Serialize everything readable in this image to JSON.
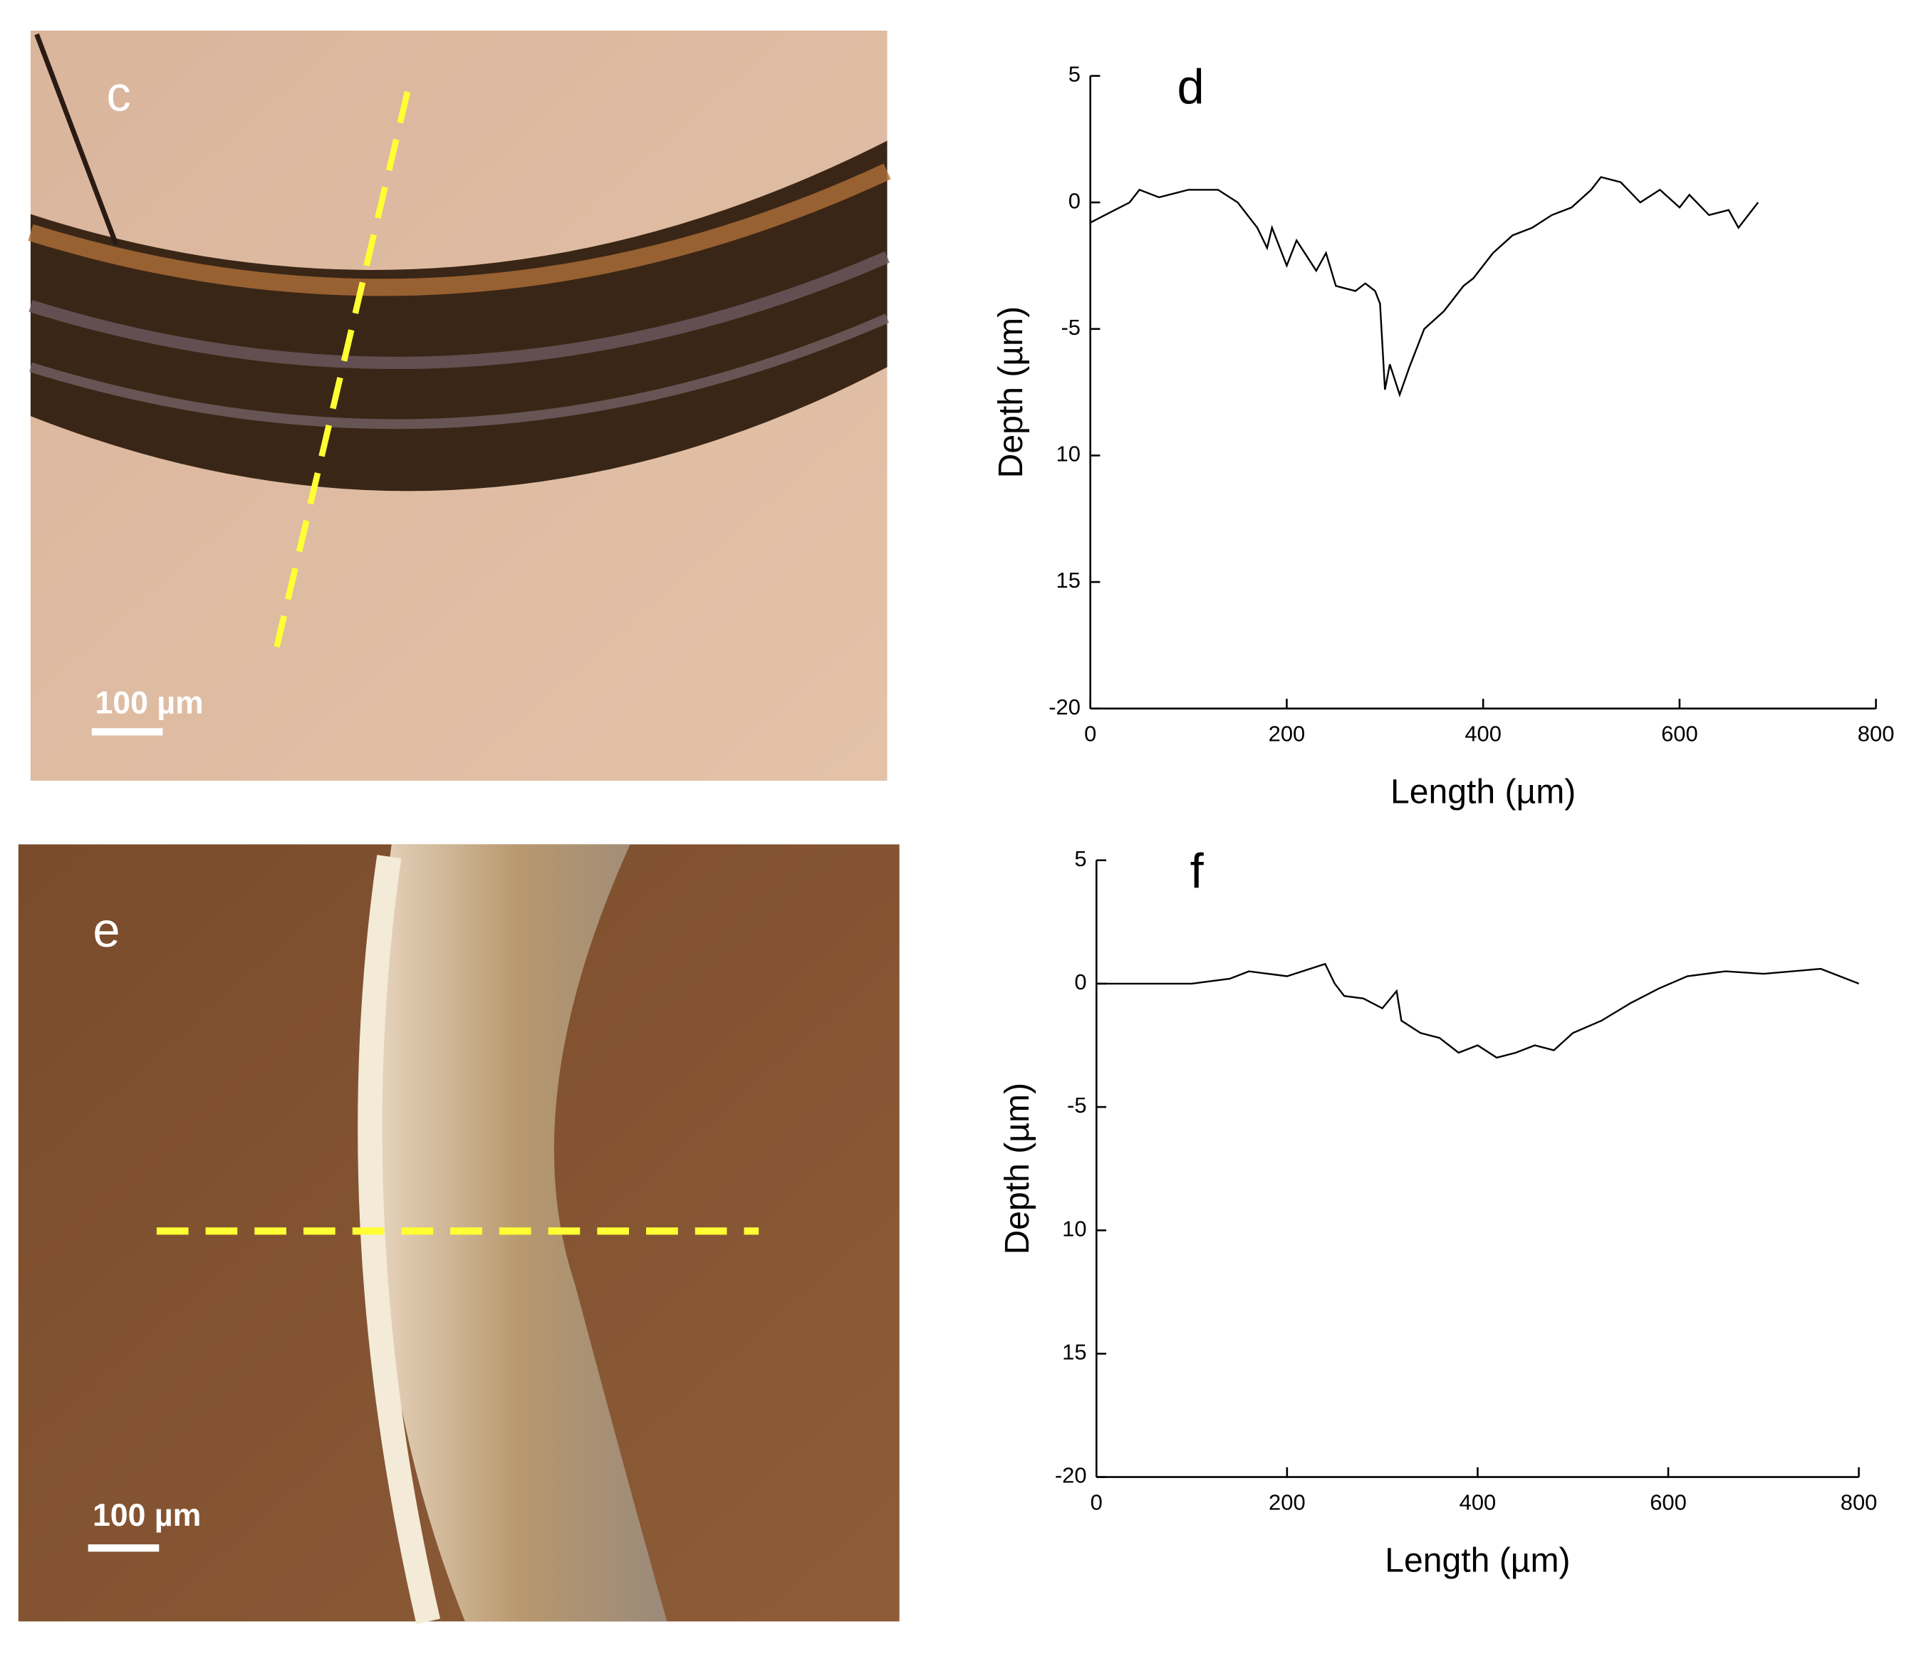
{
  "images": [
    {
      "label": "c",
      "scale_bar": "100 µm"
    },
    {
      "label": "e",
      "scale_bar": "100 µm"
    }
  ],
  "chart_data": [
    {
      "type": "line",
      "label": "d",
      "xlabel": "Length (µm)",
      "ylabel": "Depth (µm)",
      "color": "#000000",
      "x": [
        0,
        20,
        40,
        50,
        70,
        100,
        130,
        150,
        170,
        180,
        185,
        200,
        210,
        230,
        240,
        250,
        270,
        280,
        290,
        295,
        300,
        305,
        315,
        325,
        340,
        360,
        380,
        390,
        410,
        430,
        450,
        470,
        490,
        510,
        520,
        540,
        560,
        580,
        600,
        610,
        630,
        650,
        660,
        670,
        680
      ],
      "values": [
        -0.8,
        -0.4,
        0,
        0.5,
        0.2,
        0.5,
        0.5,
        0,
        -1,
        -1.8,
        -1,
        -2.5,
        -1.5,
        -2.7,
        -2,
        -3.3,
        -3.5,
        -3.2,
        -3.5,
        -4,
        -7.4,
        -6.4,
        -7.6,
        -6.5,
        -5,
        -4.3,
        -3.3,
        -3,
        -2,
        -1.3,
        -1,
        -0.5,
        -0.2,
        0.5,
        1,
        0.8,
        0,
        0.5,
        -0.2,
        0.3,
        -0.5,
        -0.3,
        -1,
        -0.5,
        0
      ],
      "xlim": [
        0,
        800
      ],
      "xticks": [
        0,
        200,
        400,
        600,
        800
      ],
      "ylim": [
        -20,
        5
      ],
      "yticks": [
        5,
        0,
        -5,
        {
          "value": -10,
          "label": "10"
        },
        {
          "value": -15,
          "label": "15"
        },
        -20
      ]
    },
    {
      "type": "line",
      "label": "f",
      "xlabel": "Length (µm)",
      "ylabel": "Depth (µm)",
      "color": "#000000",
      "x": [
        0,
        50,
        100,
        140,
        160,
        200,
        240,
        250,
        260,
        280,
        300,
        315,
        320,
        340,
        360,
        380,
        400,
        420,
        440,
        460,
        480,
        500,
        530,
        560,
        590,
        620,
        660,
        700,
        760,
        800
      ],
      "values": [
        0,
        0,
        0,
        0.2,
        0.5,
        0.3,
        0.8,
        0,
        -0.5,
        -0.6,
        -1,
        -0.3,
        -1.5,
        -2,
        -2.2,
        -2.8,
        -2.5,
        -3,
        -2.8,
        -2.5,
        -2.7,
        -2,
        -1.5,
        -0.8,
        -0.2,
        0.3,
        0.5,
        0.4,
        0.6,
        0
      ],
      "xlim": [
        0,
        800
      ],
      "xticks": [
        0,
        200,
        400,
        600,
        800
      ],
      "ylim": [
        -20,
        5
      ],
      "yticks": [
        5,
        0,
        -5,
        {
          "value": -10,
          "label": "10"
        },
        {
          "value": -15,
          "label": "15"
        },
        -20
      ]
    }
  ]
}
